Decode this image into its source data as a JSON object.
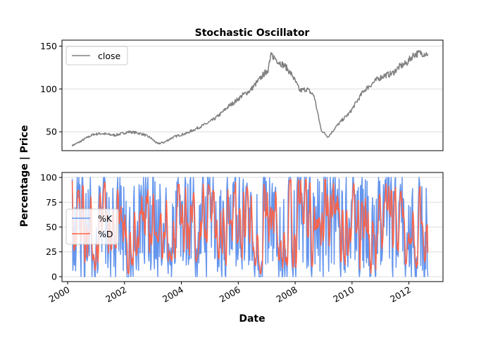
{
  "chart_data": [
    {
      "type": "line",
      "title": "Stochastic Oscillator",
      "xlabel": "",
      "ylabel": "",
      "xlim": [
        "2000-01-01",
        "2013-01-01"
      ],
      "ylim": [
        28,
        157
      ],
      "yticks": [
        50,
        100,
        150
      ],
      "grid": "horizontal",
      "legend": "upper left",
      "series": [
        {
          "name": "close",
          "color": "#808080",
          "x": [
            "2000-03-01",
            "2000-06-01",
            "2000-09-01",
            "2000-12-01",
            "2001-03-01",
            "2001-06-01",
            "2001-09-01",
            "2001-12-01",
            "2002-03-01",
            "2002-06-01",
            "2002-09-01",
            "2002-12-01",
            "2003-03-01",
            "2003-06-01",
            "2003-09-01",
            "2003-12-01",
            "2004-03-01",
            "2004-06-01",
            "2004-09-01",
            "2004-12-01",
            "2005-03-01",
            "2005-06-01",
            "2005-09-01",
            "2005-12-01",
            "2006-03-01",
            "2006-06-01",
            "2006-09-01",
            "2006-12-01",
            "2007-01-15",
            "2007-03-01",
            "2007-06-01",
            "2007-09-01",
            "2007-12-01",
            "2008-03-01",
            "2008-06-01",
            "2008-09-01",
            "2008-12-01",
            "2009-03-01",
            "2009-06-01",
            "2009-09-01",
            "2009-12-01",
            "2010-03-01",
            "2010-06-01",
            "2010-09-01",
            "2010-12-01",
            "2011-03-01",
            "2011-06-01",
            "2011-09-01",
            "2011-12-01",
            "2012-03-01",
            "2012-06-01",
            "2012-09-01"
          ],
          "values": [
            34,
            38,
            43,
            47,
            48,
            47,
            46,
            48,
            50,
            49,
            47,
            43,
            36,
            38,
            43,
            46,
            48,
            52,
            56,
            60,
            65,
            72,
            80,
            86,
            93,
            98,
            108,
            118,
            122,
            140,
            132,
            126,
            115,
            98,
            100,
            92,
            52,
            44,
            55,
            64,
            72,
            85,
            98,
            105,
            112,
            116,
            118,
            126,
            130,
            140,
            142,
            141
          ]
        }
      ]
    },
    {
      "type": "line",
      "title": "",
      "xlabel": "Date",
      "ylabel": "",
      "xlim": [
        "2000-01-01",
        "2013-01-01"
      ],
      "ylim": [
        -5,
        105
      ],
      "yticks": [
        0,
        25,
        50,
        75,
        100
      ],
      "xticks": [
        "2000",
        "2002",
        "2004",
        "2006",
        "2008",
        "2010",
        "2012"
      ],
      "grid": "horizontal",
      "legend": "center left",
      "oscillating": true,
      "series": [
        {
          "name": "%K",
          "color": "#6495ed",
          "range": [
            0,
            100
          ]
        },
        {
          "name": "%D",
          "color": "#ff6347",
          "range": [
            3,
            98
          ]
        }
      ]
    }
  ],
  "shared_ylabel": "Percentage | Price"
}
